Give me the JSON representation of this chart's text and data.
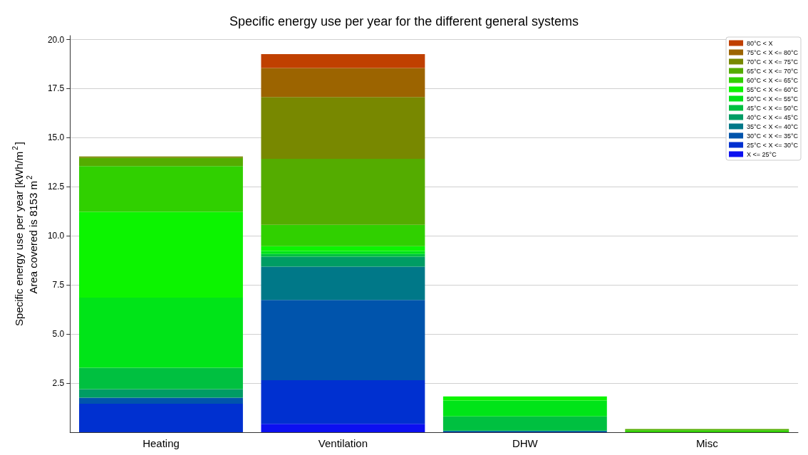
{
  "chart_data": {
    "type": "bar",
    "title": "Specific energy use per year for the different general systems",
    "ylabel": "Specific energy use per year [kWh/m$^{2}$]\nArea covered is 8153 m$^{2}$",
    "categories": [
      "Heating",
      "Ventilation",
      "DHW",
      "Misc"
    ],
    "stacked": true,
    "series": [
      {
        "name": "X <= 25°C",
        "color": "#0c10f0",
        "values": [
          0,
          0.43,
          0,
          0
        ]
      },
      {
        "name": "25°C < X <= 30°C",
        "color": "#0030d0",
        "values": [
          1.45,
          2.22,
          0.04,
          0
        ]
      },
      {
        "name": "30°C < X <= 35°C",
        "color": "#0054ac",
        "values": [
          0.31,
          4.09,
          0,
          0
        ]
      },
      {
        "name": "35°C < X <= 40°C",
        "color": "#007888",
        "values": [
          0,
          1.69,
          0,
          0
        ]
      },
      {
        "name": "40°C < X <= 45°C",
        "color": "#009c64",
        "values": [
          0.43,
          0.51,
          0.06,
          0
        ]
      },
      {
        "name": "45°C < X <= 50°C",
        "color": "#00c040",
        "values": [
          1.09,
          0.14,
          0.71,
          0
        ]
      },
      {
        "name": "50°C < X <= 55°C",
        "color": "#00e418",
        "values": [
          3.57,
          0.15,
          0.8,
          0
        ]
      },
      {
        "name": "55°C < X <= 60°C",
        "color": "#0cf400",
        "values": [
          4.37,
          0.24,
          0.21,
          0
        ]
      },
      {
        "name": "60°C < X <= 65°C",
        "color": "#30d000",
        "values": [
          2.33,
          1.09,
          0,
          0.1
        ]
      },
      {
        "name": "65°C < X <= 70°C",
        "color": "#54ac00",
        "values": [
          0.42,
          3.37,
          0,
          0.06
        ]
      },
      {
        "name": "70°C < X <= 75°C",
        "color": "#788800",
        "values": [
          0.07,
          3.14,
          0,
          0
        ]
      },
      {
        "name": "75°C < X <= 80°C",
        "color": "#9c6400",
        "values": [
          0,
          1.48,
          0,
          0
        ]
      },
      {
        "name": "80°C < X",
        "color": "#c04000",
        "values": [
          0,
          0.71,
          0,
          0
        ]
      }
    ],
    "ylim": [
      0,
      20.2
    ],
    "yticks": [
      2.5,
      {
        "value": 5,
        "label": "5.0"
      },
      7.5,
      {
        "value": 10,
        "label": "10.0"
      },
      12.5,
      {
        "value": 15,
        "label": "15.0"
      },
      17.5,
      {
        "value": 20,
        "label": "20.0"
      }
    ],
    "grid": "y",
    "legend": "top right"
  }
}
